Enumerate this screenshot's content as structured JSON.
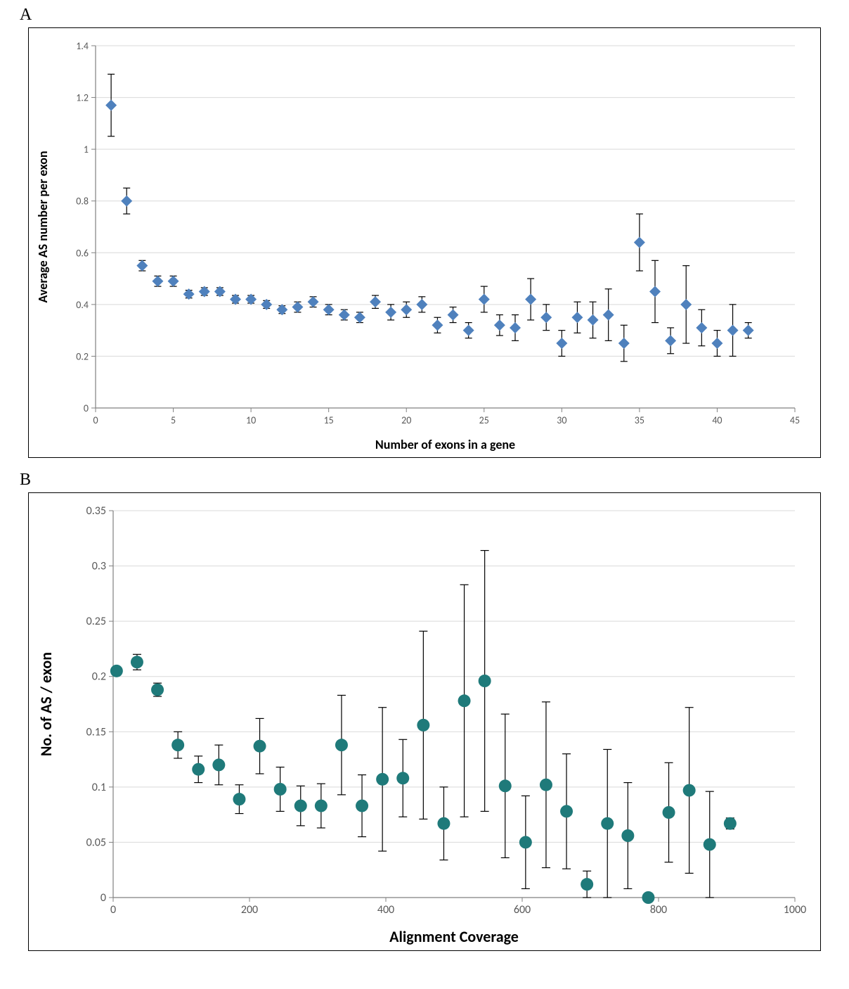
{
  "panelA": {
    "label": "A",
    "type": "scatter-errorbar",
    "xlabel": "Number of exons in a gene",
    "ylabel": "Average AS number per exon",
    "label_fontsize": 18,
    "label_fontweight": "bold",
    "tick_fontsize": 14,
    "xlim": [
      0,
      45
    ],
    "ylim": [
      0,
      1.4
    ],
    "xtick_step": 5,
    "ytick_step": 0.2,
    "marker_color": "#4f81bd",
    "marker_shape": "diamond",
    "marker_size": 8,
    "errorbar_color": "#000000",
    "errorbar_cap": 5,
    "grid_color": "#d9d9d9",
    "axis_color": "#808080",
    "background_color": "#ffffff",
    "data": [
      {
        "x": 1,
        "y": 1.17,
        "err": 0.12
      },
      {
        "x": 2,
        "y": 0.8,
        "err": 0.05
      },
      {
        "x": 3,
        "y": 0.55,
        "err": 0.02
      },
      {
        "x": 4,
        "y": 0.49,
        "err": 0.02
      },
      {
        "x": 5,
        "y": 0.49,
        "err": 0.02
      },
      {
        "x": 6,
        "y": 0.44,
        "err": 0.015
      },
      {
        "x": 7,
        "y": 0.45,
        "err": 0.015
      },
      {
        "x": 8,
        "y": 0.45,
        "err": 0.015
      },
      {
        "x": 9,
        "y": 0.42,
        "err": 0.015
      },
      {
        "x": 10,
        "y": 0.42,
        "err": 0.015
      },
      {
        "x": 11,
        "y": 0.4,
        "err": 0.015
      },
      {
        "x": 12,
        "y": 0.38,
        "err": 0.015
      },
      {
        "x": 13,
        "y": 0.39,
        "err": 0.02
      },
      {
        "x": 14,
        "y": 0.41,
        "err": 0.02
      },
      {
        "x": 15,
        "y": 0.38,
        "err": 0.02
      },
      {
        "x": 16,
        "y": 0.36,
        "err": 0.02
      },
      {
        "x": 17,
        "y": 0.35,
        "err": 0.02
      },
      {
        "x": 18,
        "y": 0.41,
        "err": 0.025
      },
      {
        "x": 19,
        "y": 0.37,
        "err": 0.03
      },
      {
        "x": 20,
        "y": 0.38,
        "err": 0.03
      },
      {
        "x": 21,
        "y": 0.4,
        "err": 0.03
      },
      {
        "x": 22,
        "y": 0.32,
        "err": 0.03
      },
      {
        "x": 23,
        "y": 0.36,
        "err": 0.03
      },
      {
        "x": 24,
        "y": 0.3,
        "err": 0.03
      },
      {
        "x": 25,
        "y": 0.42,
        "err": 0.05
      },
      {
        "x": 26,
        "y": 0.32,
        "err": 0.04
      },
      {
        "x": 27,
        "y": 0.31,
        "err": 0.05
      },
      {
        "x": 28,
        "y": 0.42,
        "err": 0.08
      },
      {
        "x": 29,
        "y": 0.35,
        "err": 0.05
      },
      {
        "x": 30,
        "y": 0.25,
        "err": 0.05
      },
      {
        "x": 31,
        "y": 0.35,
        "err": 0.06
      },
      {
        "x": 32,
        "y": 0.34,
        "err": 0.07
      },
      {
        "x": 33,
        "y": 0.36,
        "err": 0.1
      },
      {
        "x": 34,
        "y": 0.25,
        "err": 0.07
      },
      {
        "x": 35,
        "y": 0.64,
        "err": 0.11
      },
      {
        "x": 36,
        "y": 0.45,
        "err": 0.12
      },
      {
        "x": 37,
        "y": 0.26,
        "err": 0.05
      },
      {
        "x": 38,
        "y": 0.4,
        "err": 0.15
      },
      {
        "x": 39,
        "y": 0.31,
        "err": 0.07
      },
      {
        "x": 40,
        "y": 0.25,
        "err": 0.05
      },
      {
        "x": 41,
        "y": 0.3,
        "err": 0.1
      },
      {
        "x": 42,
        "y": 0.3,
        "err": 0.03
      }
    ]
  },
  "panelB": {
    "label": "B",
    "type": "scatter-errorbar",
    "xlabel": "Alignment Coverage",
    "ylabel": "No. of AS / exon",
    "label_fontsize": 22,
    "label_fontweight": "bold",
    "tick_fontsize": 16,
    "xlim": [
      0,
      1000
    ],
    "ylim": [
      0,
      0.35
    ],
    "xtick_step": 200,
    "ytick_step": 0.05,
    "marker_color": "#1f7a7a",
    "marker_shape": "circle",
    "marker_size": 9,
    "errorbar_color": "#000000",
    "errorbar_cap": 6,
    "grid_color": "#d9d9d9",
    "axis_color": "#808080",
    "background_color": "#ffffff",
    "data": [
      {
        "x": 5,
        "y": 0.205,
        "err": 0.003
      },
      {
        "x": 35,
        "y": 0.213,
        "err": 0.007
      },
      {
        "x": 65,
        "y": 0.188,
        "err": 0.006
      },
      {
        "x": 95,
        "y": 0.138,
        "err": 0.012
      },
      {
        "x": 125,
        "y": 0.116,
        "err": 0.012
      },
      {
        "x": 155,
        "y": 0.12,
        "err": 0.018
      },
      {
        "x": 185,
        "y": 0.089,
        "err": 0.013
      },
      {
        "x": 215,
        "y": 0.137,
        "err": 0.025
      },
      {
        "x": 245,
        "y": 0.098,
        "err": 0.02
      },
      {
        "x": 275,
        "y": 0.083,
        "err": 0.018
      },
      {
        "x": 305,
        "y": 0.083,
        "err": 0.02
      },
      {
        "x": 335,
        "y": 0.138,
        "err": 0.045
      },
      {
        "x": 365,
        "y": 0.083,
        "err": 0.028
      },
      {
        "x": 395,
        "y": 0.107,
        "err": 0.065
      },
      {
        "x": 425,
        "y": 0.108,
        "err": 0.035
      },
      {
        "x": 455,
        "y": 0.156,
        "err": 0.085
      },
      {
        "x": 485,
        "y": 0.067,
        "err": 0.033
      },
      {
        "x": 515,
        "y": 0.178,
        "err": 0.105
      },
      {
        "x": 545,
        "y": 0.196,
        "err": 0.118
      },
      {
        "x": 575,
        "y": 0.101,
        "err": 0.065
      },
      {
        "x": 605,
        "y": 0.05,
        "err": 0.042
      },
      {
        "x": 635,
        "y": 0.102,
        "err": 0.075
      },
      {
        "x": 665,
        "y": 0.078,
        "err": 0.052
      },
      {
        "x": 695,
        "y": 0.012,
        "err": 0.012
      },
      {
        "x": 725,
        "y": 0.067,
        "err": 0.067
      },
      {
        "x": 755,
        "y": 0.056,
        "err": 0.048
      },
      {
        "x": 785,
        "y": 0.0,
        "err": 0.0
      },
      {
        "x": 815,
        "y": 0.077,
        "err": 0.045
      },
      {
        "x": 845,
        "y": 0.097,
        "err": 0.075
      },
      {
        "x": 875,
        "y": 0.048,
        "err": 0.048
      },
      {
        "x": 905,
        "y": 0.067,
        "err": 0.005
      }
    ]
  }
}
